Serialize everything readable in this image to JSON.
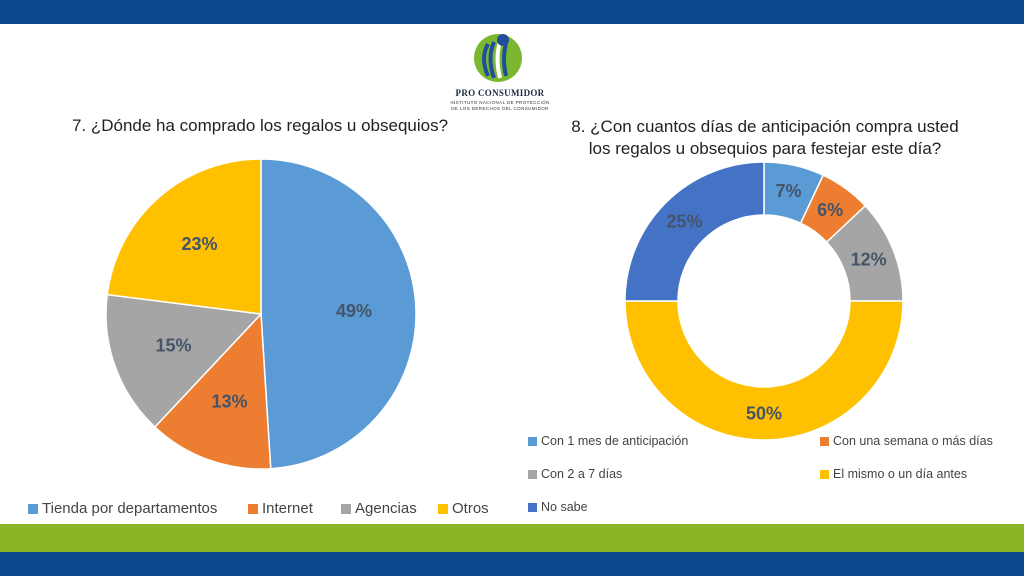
{
  "logo": {
    "name": "PRO CONSUMIDOR",
    "sub_line1": "INSTITUTO NACIONAL DE PROTECCIÓN",
    "sub_line2": "DE LOS DERECHOS DEL CONSUMIDOR"
  },
  "chart_data": [
    {
      "type": "pie",
      "title": "7. ¿Dónde ha comprado los regalos u obsequios?",
      "categories": [
        "Tienda por departamentos",
        "Internet",
        "Agencias",
        "Otros"
      ],
      "values": [
        49,
        13,
        15,
        23
      ],
      "labels": [
        "49%",
        "13%",
        "15%",
        "23%"
      ],
      "colors": [
        "#5b9bd5",
        "#ed7d31",
        "#a5a5a5",
        "#ffc000"
      ],
      "legend_position": "bottom"
    },
    {
      "type": "donut",
      "title_line1": "8. ¿Con cuantos días de anticipación compra usted",
      "title_line2": "los regalos u obsequios para festejar este día?",
      "categories": [
        "Con 1 mes de anticipación",
        "Con una semana o más días",
        "Con 2 a 7 días",
        "El mismo o un día antes",
        "No sabe"
      ],
      "values": [
        7,
        6,
        12,
        50,
        25
      ],
      "labels": [
        "7%",
        "6%",
        "12%",
        "50%",
        "25%"
      ],
      "colors": [
        "#5b9bd5",
        "#ed7d31",
        "#a5a5a5",
        "#ffc000",
        "#4472c4"
      ],
      "legend_position": "bottom"
    }
  ]
}
